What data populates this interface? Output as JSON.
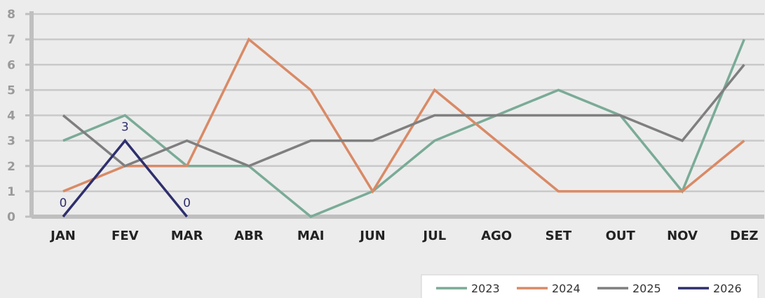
{
  "chart_data": {
    "type": "line",
    "title": "",
    "xlabel": "",
    "ylabel": "",
    "ylim": [
      0,
      8
    ],
    "yticks": [
      0,
      1,
      2,
      3,
      4,
      5,
      6,
      7,
      8
    ],
    "categories": [
      "JAN",
      "FEV",
      "MAR",
      "ABR",
      "MAI",
      "JUN",
      "JUL",
      "AGO",
      "SET",
      "OUT",
      "NOV",
      "DEZ"
    ],
    "grid": true,
    "legend_position": "bottom-right",
    "series": [
      {
        "name": "2023",
        "color": "#7aab97",
        "values": [
          3,
          4,
          2,
          2,
          0,
          1,
          3,
          4,
          5,
          4,
          1,
          7
        ]
      },
      {
        "name": "2024",
        "color": "#d98a66",
        "values": [
          1,
          2,
          2,
          7,
          5,
          1,
          5,
          3,
          1,
          1,
          1,
          3
        ]
      },
      {
        "name": "2025",
        "color": "#7f7f7f",
        "values": [
          4,
          2,
          3,
          2,
          3,
          3,
          4,
          4,
          4,
          4,
          3,
          6
        ]
      },
      {
        "name": "2026",
        "color": "#2e2f6e",
        "values": [
          0,
          3,
          0,
          null,
          null,
          null,
          null,
          null,
          null,
          null,
          null,
          null
        ],
        "data_labels": [
          "0",
          "3",
          "0"
        ]
      }
    ]
  }
}
